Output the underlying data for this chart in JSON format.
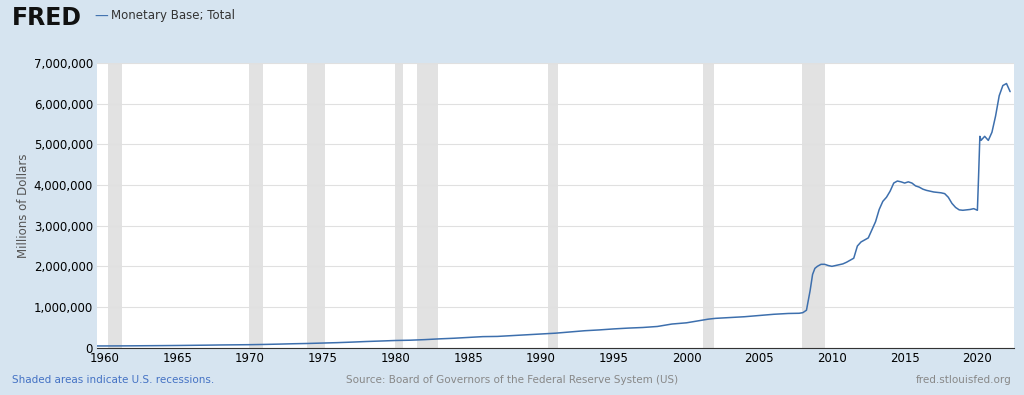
{
  "title": "Monetary Base; Total",
  "ylabel": "Millions of Dollars",
  "line_color": "#3d6fad",
  "background_color": "#d6e4f0",
  "plot_background": "#ffffff",
  "grid_color": "#e0e0e0",
  "recession_color": "#d0d0d0",
  "recession_alpha": 0.6,
  "ylim": [
    0,
    7000000
  ],
  "xlim_start": 1959.5,
  "xlim_end": 2022.5,
  "yticks": [
    0,
    1000000,
    2000000,
    3000000,
    4000000,
    5000000,
    6000000,
    7000000
  ],
  "xticks": [
    1960,
    1965,
    1970,
    1975,
    1980,
    1985,
    1990,
    1995,
    2000,
    2005,
    2010,
    2015,
    2020
  ],
  "recession_bands": [
    [
      1960.25,
      1961.17
    ],
    [
      1969.92,
      1970.92
    ],
    [
      1973.92,
      1975.17
    ],
    [
      1980.0,
      1980.5
    ],
    [
      1981.5,
      1982.92
    ],
    [
      1990.5,
      1991.17
    ],
    [
      2001.17,
      2001.92
    ],
    [
      2007.92,
      2009.5
    ]
  ],
  "fred_logo_text": "FRED",
  "legend_label": "Monetary Base; Total",
  "footer_left": "Shaded areas indicate U.S. recessions.",
  "footer_center": "Source: Board of Governors of the Federal Reserve System (US)",
  "footer_right": "fred.stlouisfed.org",
  "x_data": [
    1959.0,
    1960.0,
    1961.0,
    1962.0,
    1963.0,
    1964.0,
    1965.0,
    1966.0,
    1967.0,
    1968.0,
    1969.0,
    1970.0,
    1971.0,
    1972.0,
    1973.0,
    1974.0,
    1975.0,
    1976.0,
    1977.0,
    1978.0,
    1979.0,
    1980.0,
    1981.0,
    1982.0,
    1983.0,
    1984.0,
    1985.0,
    1986.0,
    1987.0,
    1988.0,
    1989.0,
    1990.0,
    1991.0,
    1992.0,
    1993.0,
    1994.0,
    1995.0,
    1996.0,
    1997.0,
    1998.0,
    1999.0,
    2000.0,
    2000.5,
    2001.0,
    2001.5,
    2002.0,
    2003.0,
    2004.0,
    2005.0,
    2006.0,
    2007.0,
    2007.75,
    2008.0,
    2008.25,
    2008.5,
    2008.67,
    2008.83,
    2009.0,
    2009.25,
    2009.5,
    2009.75,
    2010.0,
    2010.25,
    2010.5,
    2010.75,
    2011.0,
    2011.25,
    2011.5,
    2011.75,
    2012.0,
    2012.25,
    2012.5,
    2012.75,
    2013.0,
    2013.25,
    2013.5,
    2013.75,
    2014.0,
    2014.25,
    2014.5,
    2014.75,
    2015.0,
    2015.25,
    2015.5,
    2015.75,
    2016.0,
    2016.25,
    2016.5,
    2016.75,
    2017.0,
    2017.25,
    2017.5,
    2017.75,
    2018.0,
    2018.25,
    2018.5,
    2018.75,
    2019.0,
    2019.25,
    2019.5,
    2019.75,
    2020.0,
    2020.08,
    2020.17,
    2020.25,
    2020.5,
    2020.75,
    2021.0,
    2021.25,
    2021.5,
    2021.75,
    2022.0,
    2022.25
  ],
  "y_data": [
    40500,
    40800,
    42000,
    44000,
    46500,
    49000,
    52000,
    56000,
    60000,
    65000,
    68500,
    72000,
    78000,
    86000,
    95000,
    102000,
    112000,
    122000,
    135000,
    150000,
    162000,
    175000,
    182000,
    196000,
    215000,
    230000,
    250000,
    270000,
    275000,
    295000,
    315000,
    335000,
    355000,
    385000,
    415000,
    435000,
    460000,
    480000,
    495000,
    520000,
    580000,
    610000,
    640000,
    670000,
    700000,
    720000,
    740000,
    760000,
    790000,
    820000,
    840000,
    845000,
    860000,
    920000,
    1400000,
    1800000,
    1950000,
    2000000,
    2050000,
    2050000,
    2020000,
    2000000,
    2020000,
    2040000,
    2060000,
    2100000,
    2150000,
    2200000,
    2500000,
    2600000,
    2650000,
    2700000,
    2900000,
    3100000,
    3400000,
    3600000,
    3700000,
    3850000,
    4050000,
    4100000,
    4080000,
    4050000,
    4080000,
    4050000,
    3980000,
    3950000,
    3900000,
    3870000,
    3850000,
    3830000,
    3820000,
    3810000,
    3790000,
    3700000,
    3550000,
    3450000,
    3390000,
    3380000,
    3390000,
    3400000,
    3420000,
    3380000,
    4200000,
    5200000,
    5100000,
    5200000,
    5100000,
    5300000,
    5700000,
    6200000,
    6450000,
    6500000,
    6300000
  ]
}
